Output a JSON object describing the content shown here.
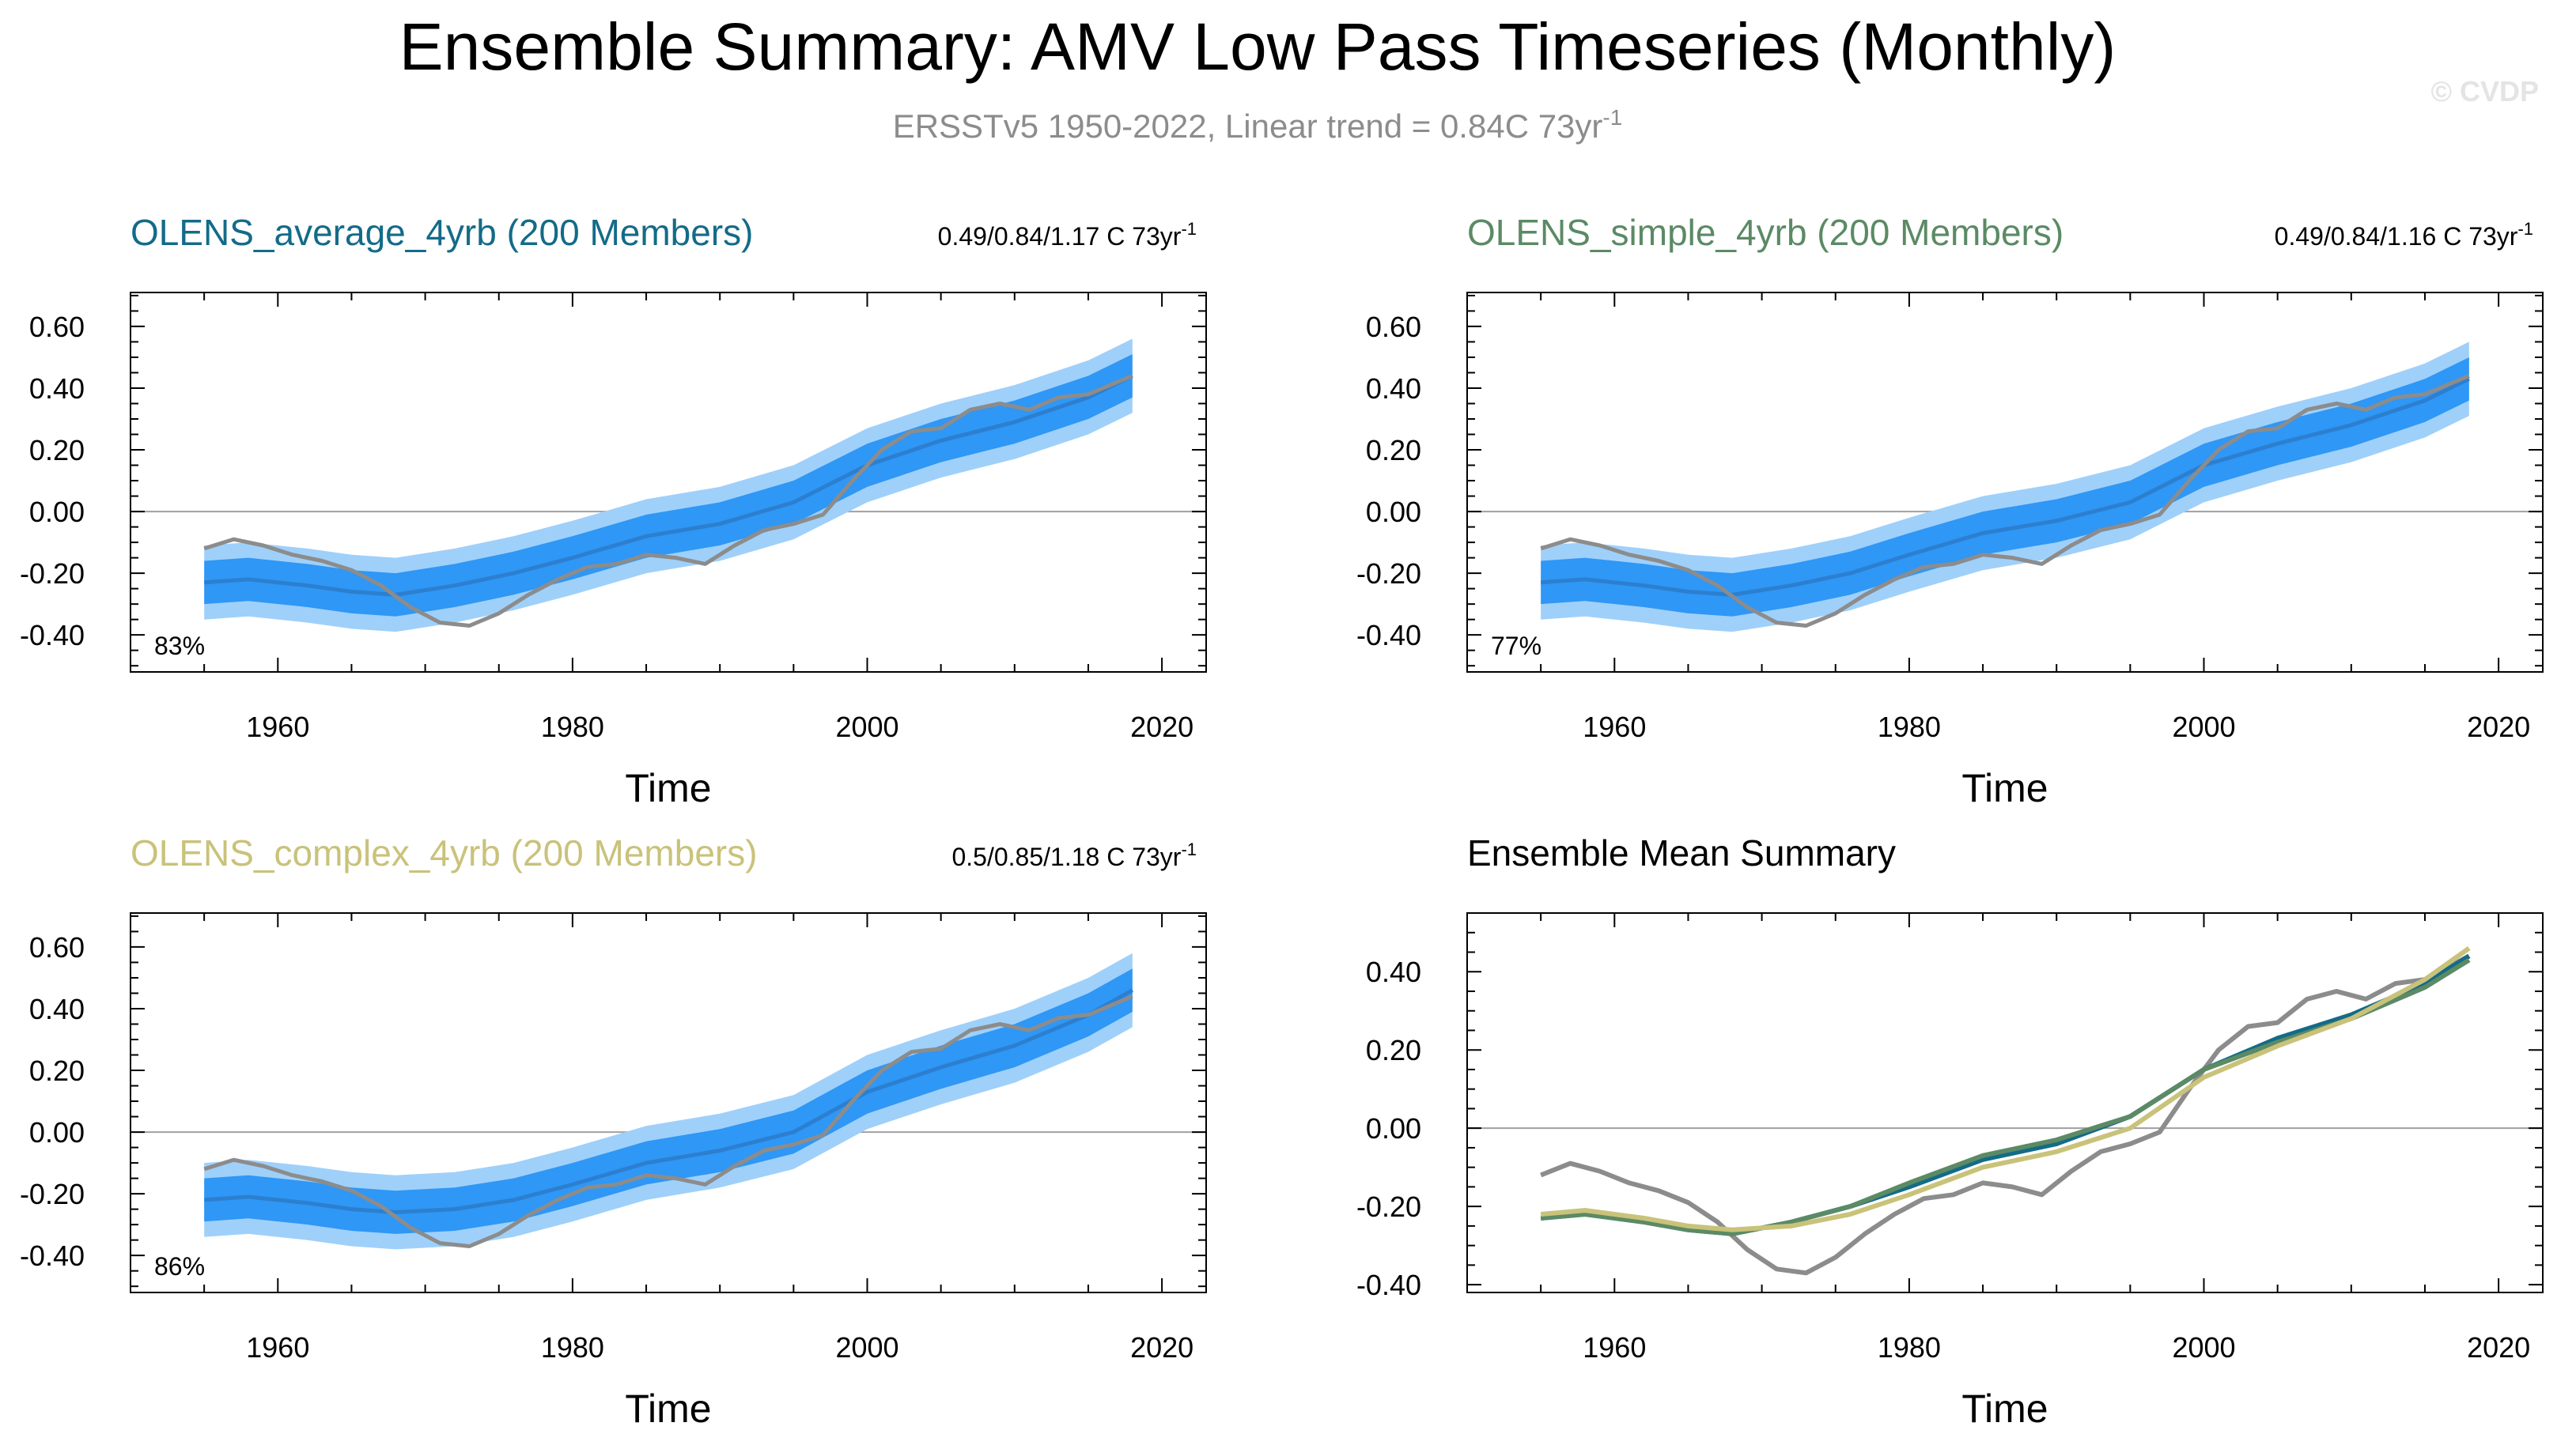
{
  "figure": {
    "title": "Ensemble Summary: AMV Low Pass Timeseries (Monthly)",
    "subtitle": "ERSSTv5 1950-2022, Linear trend = 0.84C 73yr",
    "subtitle_sup": "-1",
    "watermark": "© CVDP"
  },
  "colors": {
    "obs": "#8c8c8c",
    "band_outer": "#9fd0fa",
    "band_inner": "#2f97f5",
    "mean_line": "#2c7fd0",
    "average": "#136b88",
    "simple": "#5b8a65",
    "complex": "#c9c27a",
    "zero_line": "#a0a0a0",
    "subtitle": "#8c8c8c"
  },
  "chart_data": [
    {
      "type": "line",
      "title": "OLENS_average_4yrb (200 Members)",
      "title_color_key": "average",
      "trend_label": "0.49/0.84/1.17 C 73yr",
      "trend_sup": "-1",
      "percent_label": "83%",
      "xlabel": "Time",
      "ylabel": "",
      "xlim": [
        1950,
        2023
      ],
      "ylim": [
        -0.52,
        0.71
      ],
      "yticks": [
        -0.4,
        -0.2,
        0.0,
        0.2,
        0.4,
        0.6
      ],
      "ytick_labels": [
        "-0.40",
        "-0.20",
        "0.00",
        "0.20",
        "0.40",
        "0.60"
      ],
      "xticks": [
        1960,
        1980,
        2000,
        2020
      ],
      "xtick_labels": [
        "1960",
        "1980",
        "2000",
        "2020"
      ],
      "band_x": [
        1955,
        1958,
        1962,
        1965,
        1968,
        1972,
        1976,
        1980,
        1985,
        1990,
        1995,
        2000,
        2005,
        2010,
        2015,
        2018
      ],
      "mean": [
        -0.23,
        -0.22,
        -0.24,
        -0.26,
        -0.27,
        -0.24,
        -0.2,
        -0.15,
        -0.08,
        -0.04,
        0.03,
        0.15,
        0.23,
        0.29,
        0.37,
        0.44
      ],
      "inner_halfwidth": 0.07,
      "outer_halfwidth": 0.12,
      "obs_x": [
        1955,
        1957,
        1959,
        1961,
        1963,
        1965,
        1967,
        1969,
        1971,
        1973,
        1975,
        1977,
        1979,
        1981,
        1983,
        1985,
        1987,
        1989,
        1991,
        1993,
        1995,
        1997,
        1999,
        2001,
        2003,
        2005,
        2007,
        2009,
        2011,
        2013,
        2015,
        2017,
        2018
      ],
      "obs": [
        -0.12,
        -0.09,
        -0.11,
        -0.14,
        -0.16,
        -0.19,
        -0.24,
        -0.31,
        -0.36,
        -0.37,
        -0.33,
        -0.27,
        -0.22,
        -0.18,
        -0.17,
        -0.14,
        -0.15,
        -0.17,
        -0.11,
        -0.06,
        -0.04,
        -0.01,
        0.1,
        0.2,
        0.26,
        0.27,
        0.33,
        0.35,
        0.33,
        0.37,
        0.38,
        0.42,
        0.44
      ]
    },
    {
      "type": "line",
      "title": "OLENS_simple_4yrb (200 Members)",
      "title_color_key": "simple",
      "trend_label": "0.49/0.84/1.16 C 73yr",
      "trend_sup": "-1",
      "percent_label": "77%",
      "xlabel": "Time",
      "ylabel": "",
      "xlim": [
        1950,
        2023
      ],
      "ylim": [
        -0.52,
        0.71
      ],
      "yticks": [
        -0.4,
        -0.2,
        0.0,
        0.2,
        0.4,
        0.6
      ],
      "ytick_labels": [
        "-0.40",
        "-0.20",
        "0.00",
        "0.20",
        "0.40",
        "0.60"
      ],
      "xticks": [
        1960,
        1980,
        2000,
        2020
      ],
      "xtick_labels": [
        "1960",
        "1980",
        "2000",
        "2020"
      ],
      "band_x": [
        1955,
        1958,
        1962,
        1965,
        1968,
        1972,
        1976,
        1980,
        1985,
        1990,
        1995,
        2000,
        2005,
        2010,
        2015,
        2018
      ],
      "mean": [
        -0.23,
        -0.22,
        -0.24,
        -0.26,
        -0.27,
        -0.24,
        -0.2,
        -0.14,
        -0.07,
        -0.03,
        0.03,
        0.15,
        0.22,
        0.28,
        0.36,
        0.43
      ],
      "inner_halfwidth": 0.07,
      "outer_halfwidth": 0.12,
      "obs_x": [
        1955,
        1957,
        1959,
        1961,
        1963,
        1965,
        1967,
        1969,
        1971,
        1973,
        1975,
        1977,
        1979,
        1981,
        1983,
        1985,
        1987,
        1989,
        1991,
        1993,
        1995,
        1997,
        1999,
        2001,
        2003,
        2005,
        2007,
        2009,
        2011,
        2013,
        2015,
        2017,
        2018
      ],
      "obs": [
        -0.12,
        -0.09,
        -0.11,
        -0.14,
        -0.16,
        -0.19,
        -0.24,
        -0.31,
        -0.36,
        -0.37,
        -0.33,
        -0.27,
        -0.22,
        -0.18,
        -0.17,
        -0.14,
        -0.15,
        -0.17,
        -0.11,
        -0.06,
        -0.04,
        -0.01,
        0.1,
        0.2,
        0.26,
        0.27,
        0.33,
        0.35,
        0.33,
        0.37,
        0.38,
        0.42,
        0.44
      ]
    },
    {
      "type": "line",
      "title": "OLENS_complex_4yrb (200 Members)",
      "title_color_key": "complex",
      "trend_label": "0.5/0.85/1.18 C 73yr",
      "trend_sup": "-1",
      "percent_label": "86%",
      "xlabel": "Time",
      "ylabel": "",
      "xlim": [
        1950,
        2023
      ],
      "ylim": [
        -0.52,
        0.71
      ],
      "yticks": [
        -0.4,
        -0.2,
        0.0,
        0.2,
        0.4,
        0.6
      ],
      "ytick_labels": [
        "-0.40",
        "-0.20",
        "0.00",
        "0.20",
        "0.40",
        "0.60"
      ],
      "xticks": [
        1960,
        1980,
        2000,
        2020
      ],
      "xtick_labels": [
        "1960",
        "1980",
        "2000",
        "2020"
      ],
      "band_x": [
        1955,
        1958,
        1962,
        1965,
        1968,
        1972,
        1976,
        1980,
        1985,
        1990,
        1995,
        2000,
        2005,
        2010,
        2015,
        2018
      ],
      "mean": [
        -0.22,
        -0.21,
        -0.23,
        -0.25,
        -0.26,
        -0.25,
        -0.22,
        -0.17,
        -0.1,
        -0.06,
        0.0,
        0.13,
        0.21,
        0.28,
        0.38,
        0.46
      ],
      "inner_halfwidth": 0.07,
      "outer_halfwidth": 0.12,
      "obs_x": [
        1955,
        1957,
        1959,
        1961,
        1963,
        1965,
        1967,
        1969,
        1971,
        1973,
        1975,
        1977,
        1979,
        1981,
        1983,
        1985,
        1987,
        1989,
        1991,
        1993,
        1995,
        1997,
        1999,
        2001,
        2003,
        2005,
        2007,
        2009,
        2011,
        2013,
        2015,
        2017,
        2018
      ],
      "obs": [
        -0.12,
        -0.09,
        -0.11,
        -0.14,
        -0.16,
        -0.19,
        -0.24,
        -0.31,
        -0.36,
        -0.37,
        -0.33,
        -0.27,
        -0.22,
        -0.18,
        -0.17,
        -0.14,
        -0.15,
        -0.17,
        -0.11,
        -0.06,
        -0.04,
        -0.01,
        0.1,
        0.2,
        0.26,
        0.27,
        0.33,
        0.35,
        0.33,
        0.37,
        0.38,
        0.42,
        0.44
      ]
    },
    {
      "type": "line",
      "title": "Ensemble Mean Summary",
      "xlabel": "Time",
      "ylabel": "",
      "xlim": [
        1950,
        2023
      ],
      "ylim": [
        -0.42,
        0.55
      ],
      "yticks": [
        -0.4,
        -0.2,
        0.0,
        0.2,
        0.4
      ],
      "ytick_labels": [
        "-0.40",
        "-0.20",
        "0.00",
        "0.20",
        "0.40"
      ],
      "xticks": [
        1960,
        1980,
        2000,
        2020
      ],
      "xtick_labels": [
        "1960",
        "1980",
        "2000",
        "2020"
      ],
      "series": [
        {
          "name": "OLENS_average_4yrb",
          "color_key": "average",
          "x": [
            1955,
            1958,
            1962,
            1965,
            1968,
            1972,
            1976,
            1980,
            1985,
            1990,
            1995,
            2000,
            2005,
            2010,
            2015,
            2018
          ],
          "values": [
            -0.23,
            -0.22,
            -0.24,
            -0.26,
            -0.27,
            -0.24,
            -0.2,
            -0.15,
            -0.08,
            -0.04,
            0.03,
            0.15,
            0.23,
            0.29,
            0.37,
            0.44
          ]
        },
        {
          "name": "OLENS_simple_4yrb",
          "color_key": "simple",
          "x": [
            1955,
            1958,
            1962,
            1965,
            1968,
            1972,
            1976,
            1980,
            1985,
            1990,
            1995,
            2000,
            2005,
            2010,
            2015,
            2018
          ],
          "values": [
            -0.23,
            -0.22,
            -0.24,
            -0.26,
            -0.27,
            -0.24,
            -0.2,
            -0.14,
            -0.07,
            -0.03,
            0.03,
            0.15,
            0.22,
            0.28,
            0.36,
            0.43
          ]
        },
        {
          "name": "OLENS_complex_4yrb",
          "color_key": "complex",
          "x": [
            1955,
            1958,
            1962,
            1965,
            1968,
            1972,
            1976,
            1980,
            1985,
            1990,
            1995,
            2000,
            2005,
            2010,
            2015,
            2018
          ],
          "values": [
            -0.22,
            -0.21,
            -0.23,
            -0.25,
            -0.26,
            -0.25,
            -0.22,
            -0.17,
            -0.1,
            -0.06,
            0.0,
            0.13,
            0.21,
            0.28,
            0.38,
            0.46
          ]
        },
        {
          "name": "ERSSTv5",
          "color_key": "obs",
          "x": [
            1955,
            1957,
            1959,
            1961,
            1963,
            1965,
            1967,
            1969,
            1971,
            1973,
            1975,
            1977,
            1979,
            1981,
            1983,
            1985,
            1987,
            1989,
            1991,
            1993,
            1995,
            1997,
            1999,
            2001,
            2003,
            2005,
            2007,
            2009,
            2011,
            2013,
            2015,
            2017,
            2018
          ],
          "values": [
            -0.12,
            -0.09,
            -0.11,
            -0.14,
            -0.16,
            -0.19,
            -0.24,
            -0.31,
            -0.36,
            -0.37,
            -0.33,
            -0.27,
            -0.22,
            -0.18,
            -0.17,
            -0.14,
            -0.15,
            -0.17,
            -0.11,
            -0.06,
            -0.04,
            -0.01,
            0.1,
            0.2,
            0.26,
            0.27,
            0.33,
            0.35,
            0.33,
            0.37,
            0.38,
            0.42,
            0.44
          ]
        }
      ]
    }
  ]
}
